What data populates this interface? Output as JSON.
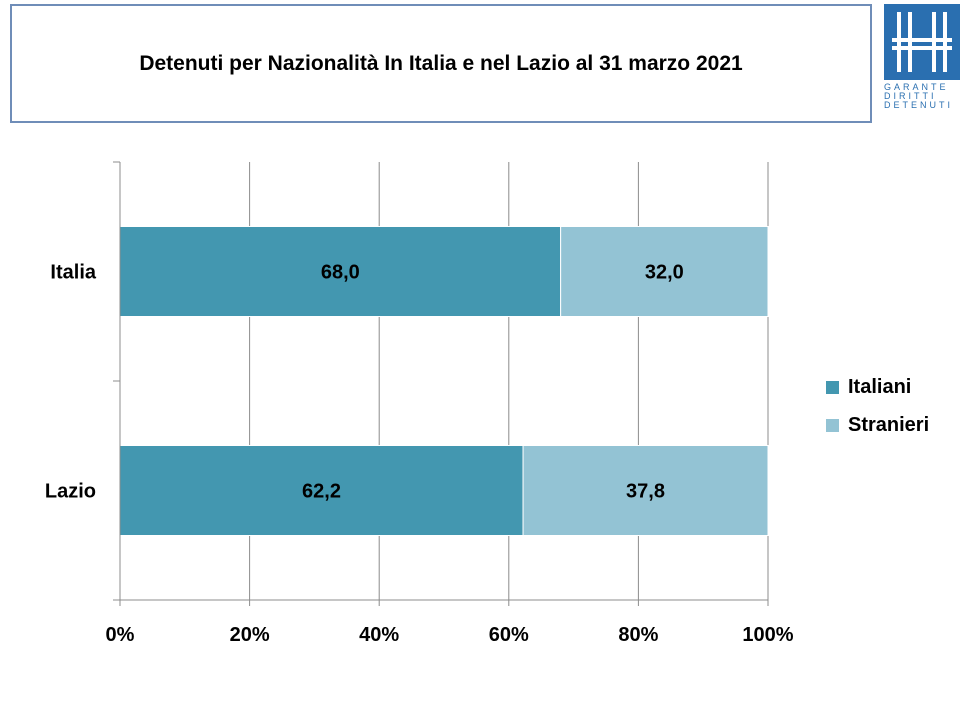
{
  "title": "Detenuti per Nazionalità In Italia e nel Lazio al 31 marzo 2021",
  "logo": {
    "lines": [
      "GARANTE",
      "DIRITTI",
      "DETENUTI"
    ],
    "color": "#2a6fb0"
  },
  "chart_data": {
    "type": "bar",
    "orientation": "horizontal",
    "stacked": "percent",
    "title": "Detenuti per Nazionalità In Italia e nel Lazio al 31 marzo 2021",
    "categories": [
      "Italia",
      "Lazio"
    ],
    "series": [
      {
        "name": "Italiani",
        "values": [
          68.0,
          62.2
        ],
        "labels": [
          "68,0",
          "62,2"
        ],
        "color": "#4397b0"
      },
      {
        "name": "Stranieri",
        "values": [
          32.0,
          37.8
        ],
        "labels": [
          "32,0",
          "37,8"
        ],
        "color": "#93c3d4"
      }
    ],
    "xlim": [
      0,
      100
    ],
    "xticks": [
      "0%",
      "20%",
      "40%",
      "60%",
      "80%",
      "100%"
    ],
    "grid": true,
    "legend": "right"
  }
}
